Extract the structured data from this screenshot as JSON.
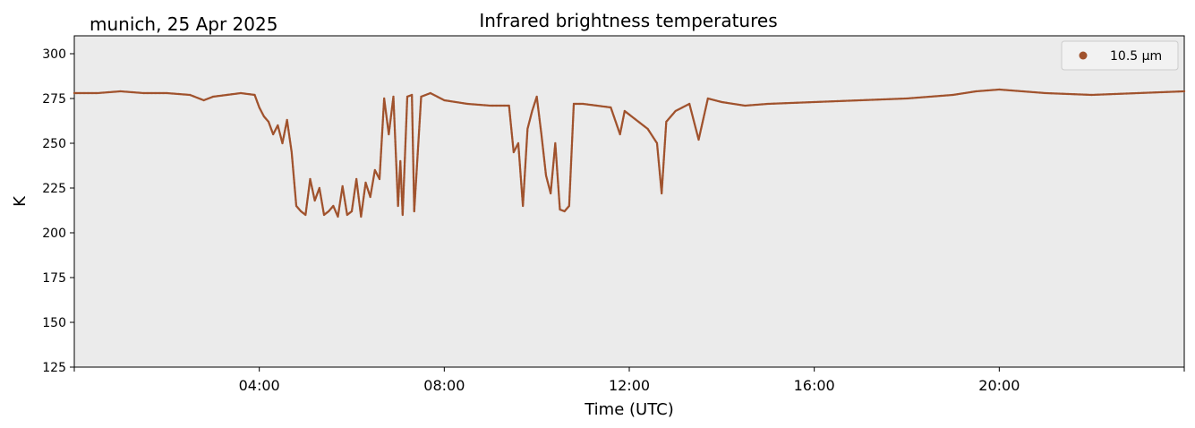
{
  "chart_data": {
    "type": "scatter",
    "title": "Infrared brightness temperatures",
    "subtitle": "munich, 25 Apr 2025",
    "xlabel": "Time (UTC)",
    "ylabel": "K",
    "xlim": [
      "00:00",
      "24:00"
    ],
    "ylim": [
      125,
      310
    ],
    "x_ticks": [
      "04:00",
      "08:00",
      "12:00",
      "16:00",
      "20:00"
    ],
    "y_ticks": [
      125,
      150,
      175,
      200,
      225,
      250,
      275,
      300
    ],
    "grid": false,
    "legend_position": "top-right",
    "series": [
      {
        "name": "10.5 µm",
        "color": "#a0522d",
        "x_hours": [
          0.0,
          0.5,
          1.0,
          1.5,
          2.0,
          2.5,
          2.8,
          3.0,
          3.3,
          3.6,
          3.9,
          4.0,
          4.1,
          4.2,
          4.3,
          4.4,
          4.5,
          4.6,
          4.7,
          4.8,
          4.9,
          5.0,
          5.1,
          5.2,
          5.3,
          5.4,
          5.5,
          5.6,
          5.7,
          5.8,
          5.9,
          6.0,
          6.1,
          6.2,
          6.3,
          6.4,
          6.5,
          6.6,
          6.7,
          6.8,
          6.9,
          7.0,
          7.05,
          7.1,
          7.2,
          7.3,
          7.35,
          7.5,
          7.7,
          8.0,
          8.5,
          9.0,
          9.4,
          9.5,
          9.6,
          9.7,
          9.8,
          9.9,
          10.0,
          10.1,
          10.2,
          10.3,
          10.4,
          10.5,
          10.6,
          10.7,
          10.8,
          11.0,
          11.3,
          11.6,
          11.8,
          11.9,
          12.0,
          12.2,
          12.4,
          12.6,
          12.7,
          12.8,
          13.0,
          13.3,
          13.5,
          13.7,
          14.0,
          14.5,
          15.0,
          16.0,
          17.0,
          18.0,
          19.0,
          19.5,
          20.0,
          21.0,
          22.0,
          23.0,
          24.0
        ],
        "values": [
          278,
          278,
          279,
          278,
          278,
          277,
          274,
          276,
          277,
          278,
          277,
          270,
          265,
          262,
          255,
          260,
          250,
          263,
          245,
          215,
          212,
          210,
          230,
          218,
          225,
          210,
          212,
          215,
          209,
          226,
          210,
          212,
          230,
          209,
          228,
          220,
          235,
          230,
          275,
          255,
          276,
          215,
          240,
          210,
          276,
          277,
          212,
          276,
          278,
          274,
          272,
          271,
          271,
          245,
          250,
          215,
          258,
          268,
          276,
          255,
          232,
          222,
          250,
          213,
          212,
          215,
          272,
          272,
          271,
          270,
          255,
          268,
          266,
          262,
          258,
          250,
          222,
          262,
          268,
          272,
          252,
          275,
          273,
          271,
          272,
          273,
          274,
          275,
          277,
          279,
          280,
          278,
          277,
          278,
          279
        ]
      }
    ]
  }
}
